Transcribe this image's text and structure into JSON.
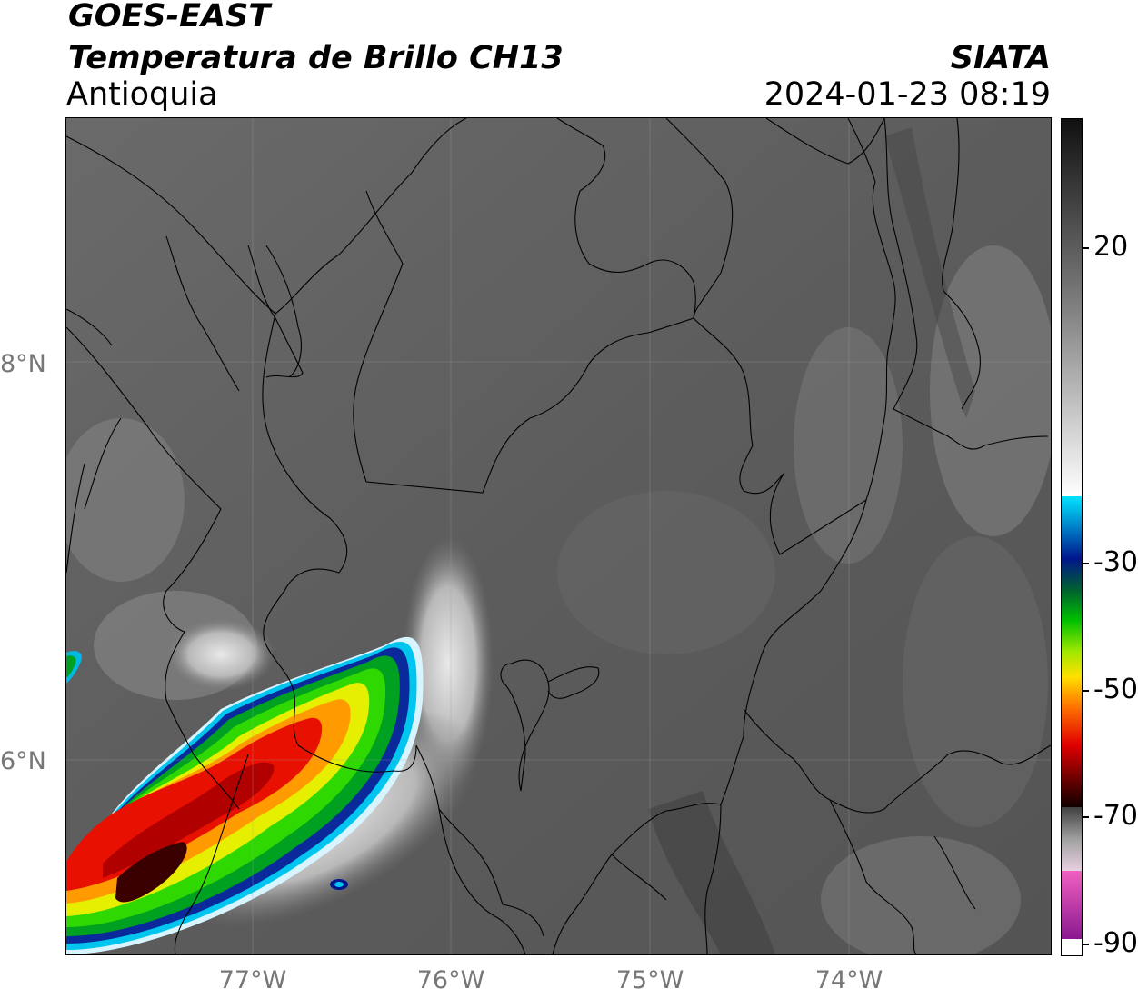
{
  "header": {
    "satellite": "GOES-EAST",
    "product": "Temperatura de Brillo CH13",
    "region": "Antioquia",
    "organization": "SIATA",
    "datetime": "2024-01-23 08:19"
  },
  "map": {
    "latitude_ticks": [
      "8°N",
      "6°N"
    ],
    "longitude_ticks": [
      "77°W",
      "76°W",
      "75°W",
      "74°W"
    ]
  },
  "colorbar": {
    "tick_labels": [
      "20",
      "-30",
      "-50",
      "-70",
      "-90"
    ]
  },
  "colors": {
    "cold_cloud_core": "#3a0000",
    "red": "#e00000",
    "orange": "#ff8c00",
    "yellow": "#f2f200",
    "green": "#00c000",
    "dark_blue": "#00168c",
    "cyan": "#00d8ff",
    "land_gray": "#5a5a5a"
  }
}
